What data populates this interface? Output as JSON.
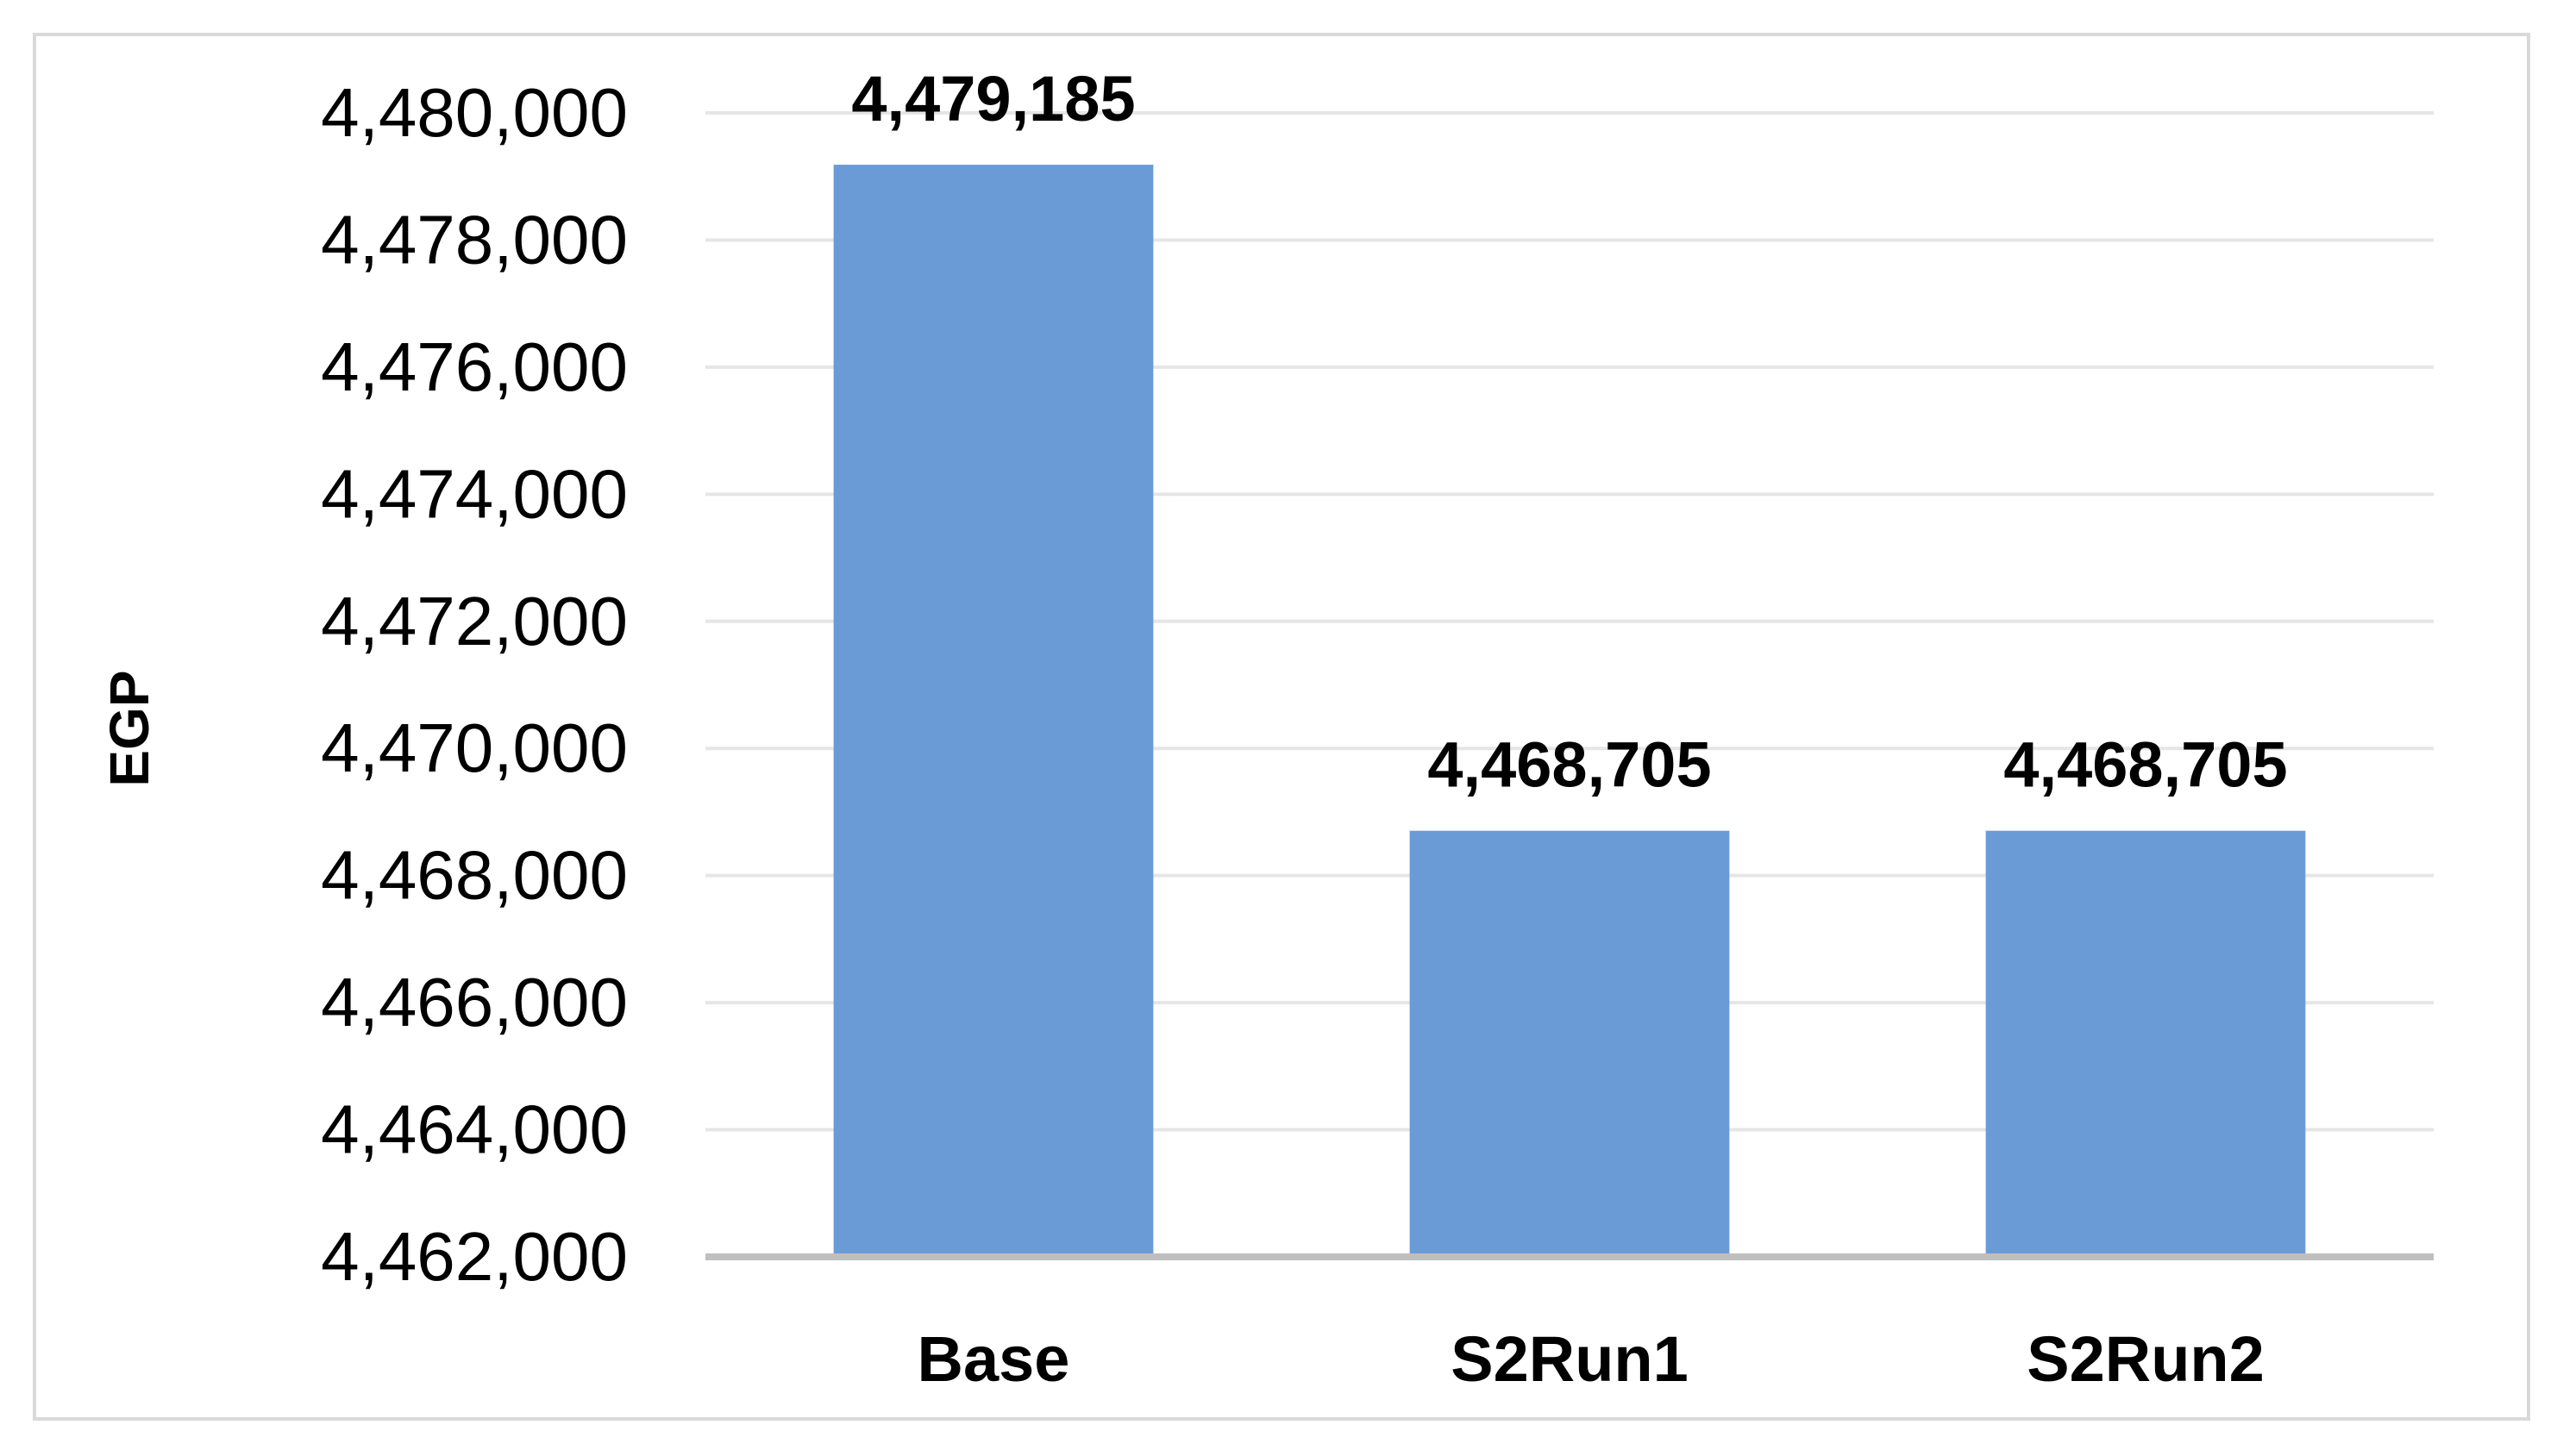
{
  "chart_data": {
    "type": "bar",
    "categories": [
      "Base",
      "S2Run1",
      "S2Run2"
    ],
    "values": [
      4479185,
      4468705,
      4468705
    ],
    "data_labels": [
      "4,479,185",
      "4,468,705",
      "4,468,705"
    ],
    "title": "",
    "xlabel": "",
    "ylabel": "EGP",
    "ylim": [
      4462000,
      4480000
    ],
    "yticks": [
      4462000,
      4464000,
      4466000,
      4468000,
      4470000,
      4472000,
      4474000,
      4476000,
      4478000,
      4480000
    ],
    "ytick_labels": [
      "4,462,000",
      "4,464,000",
      "4,466,000",
      "4,468,000",
      "4,470,000",
      "4,472,000",
      "4,474,000",
      "4,476,000",
      "4,478,000",
      "4,480,000"
    ],
    "grid": true,
    "legend": "none",
    "colors": {
      "bar": "#6b9bd6",
      "grid": "#e6e6e6",
      "axis": "#bfbfbf",
      "frame": "#d9d9d9"
    }
  }
}
